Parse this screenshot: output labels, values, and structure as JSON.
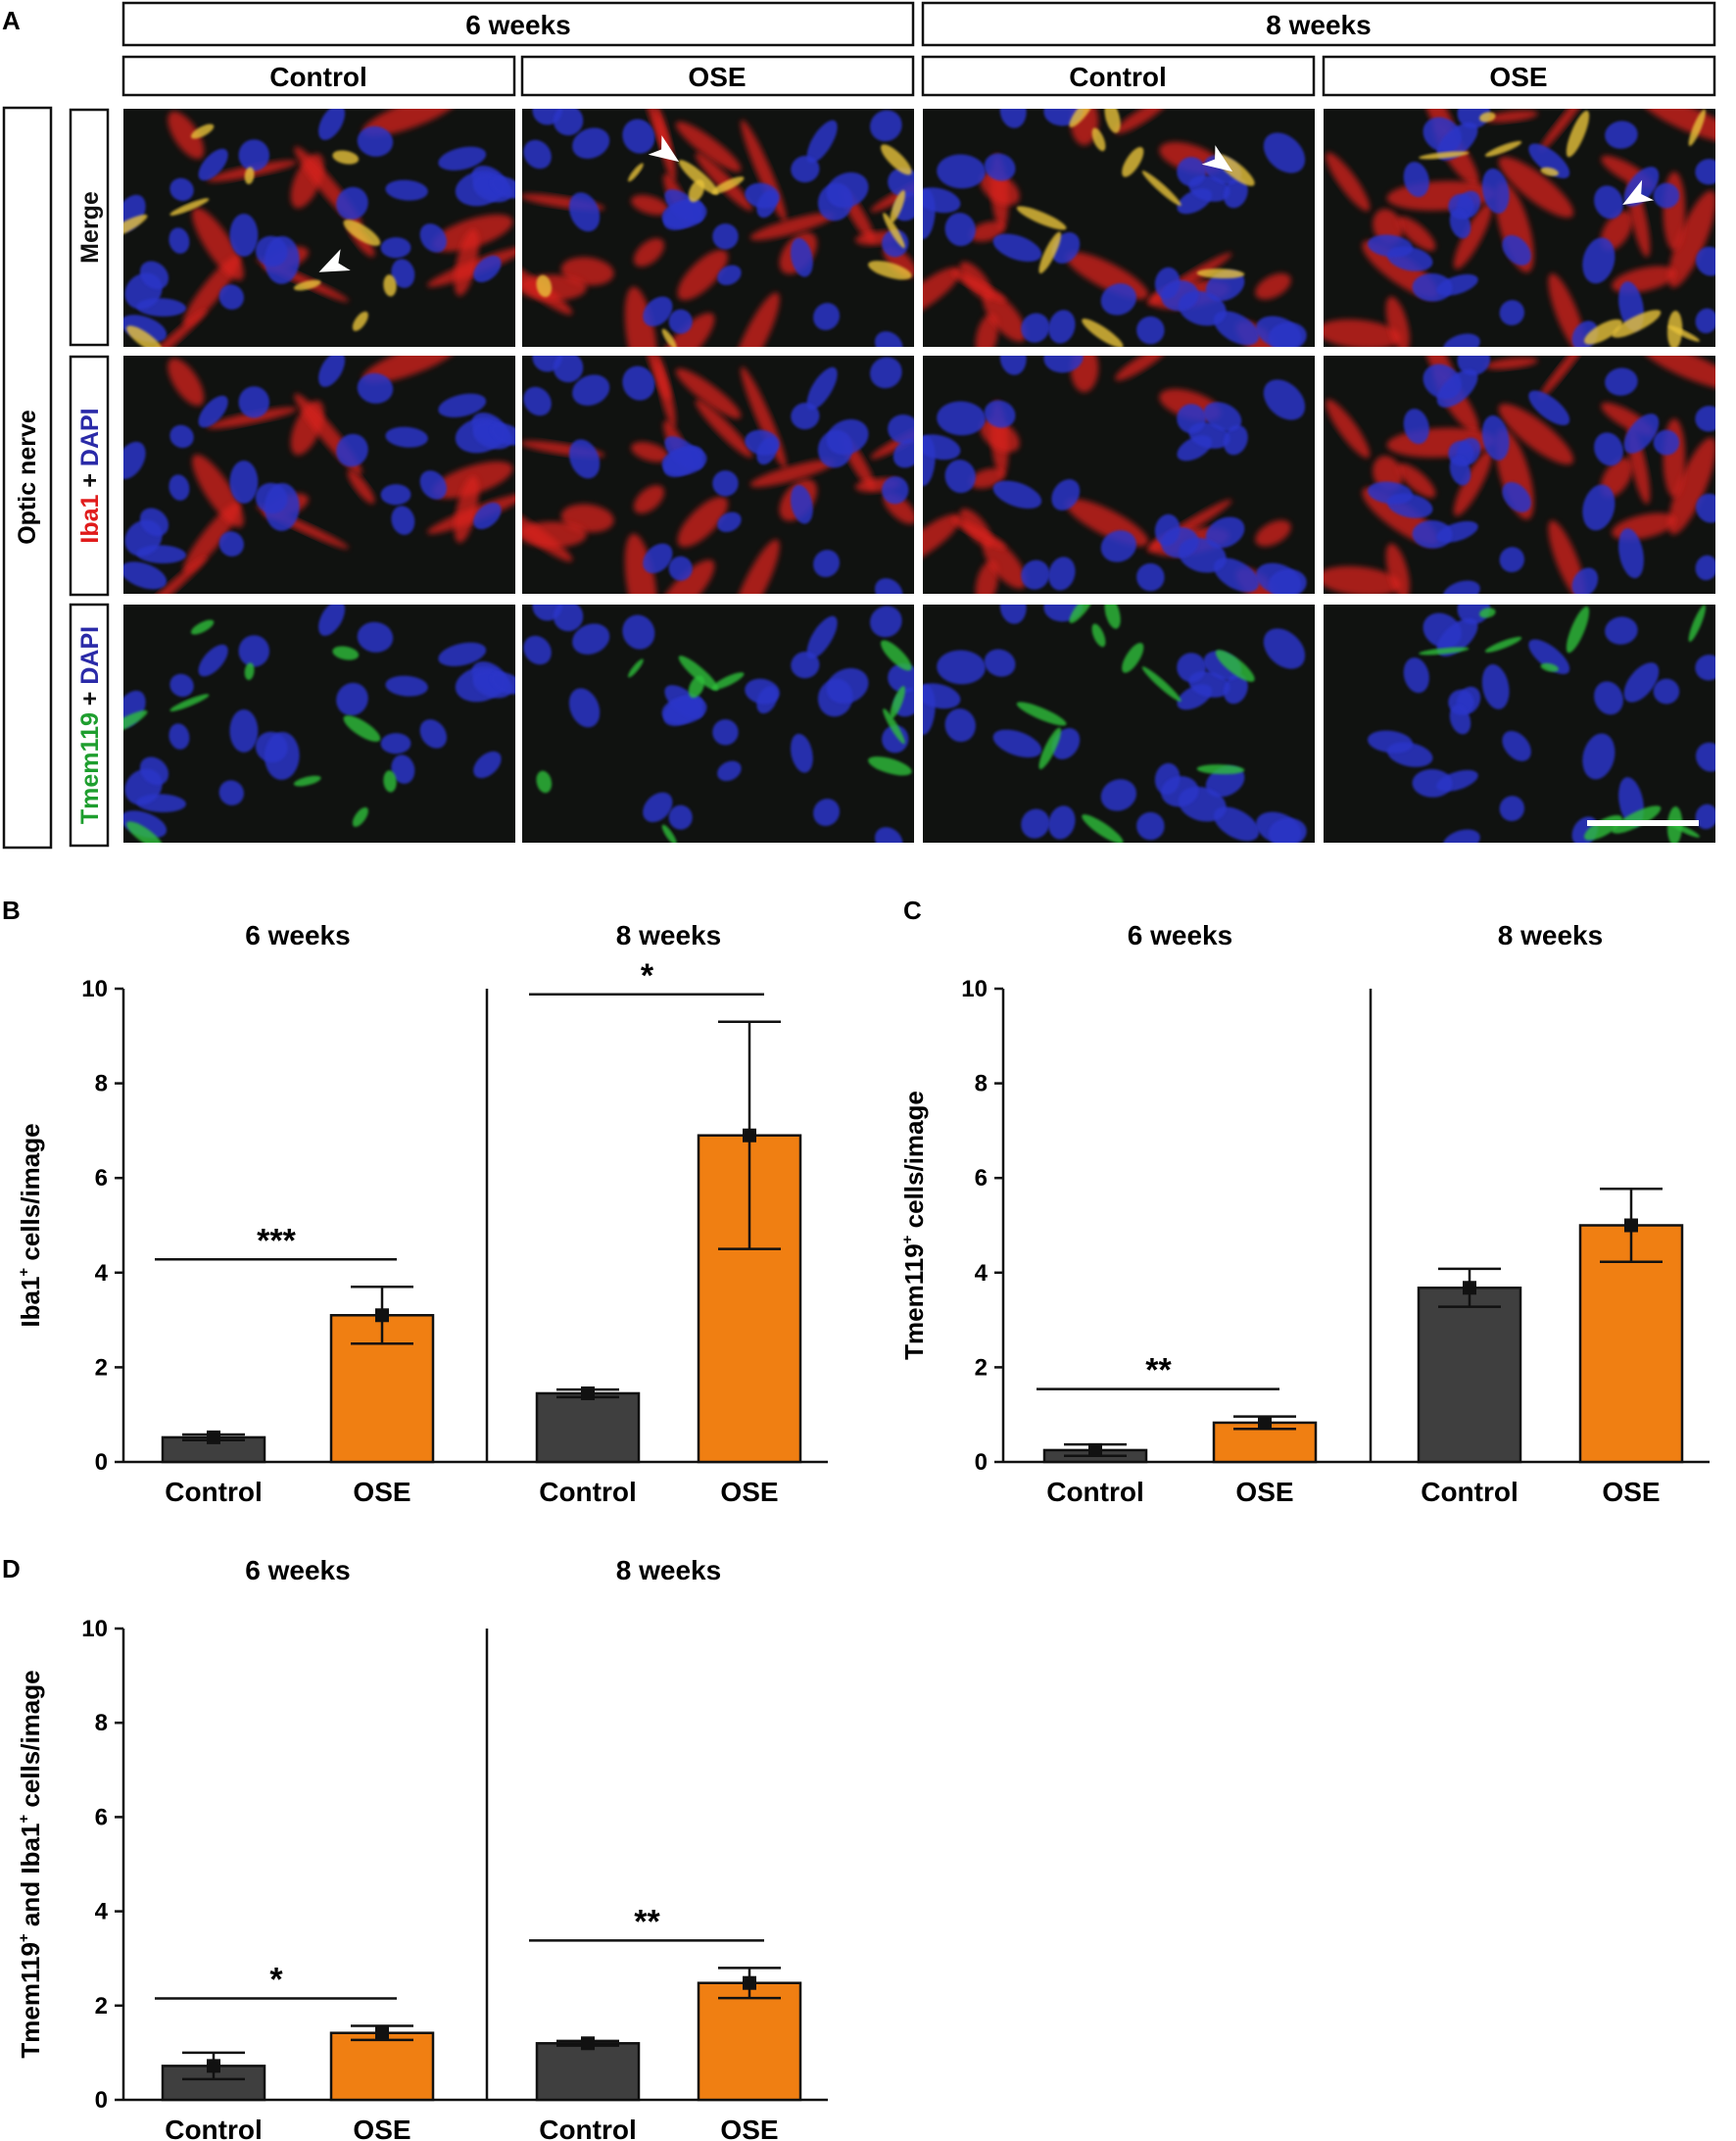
{
  "panel_labels": {
    "A": "A",
    "B": "B",
    "C": "C",
    "D": "D"
  },
  "micrographs": {
    "time_headers": [
      "6 weeks",
      "8 weeks"
    ],
    "condition_headers": [
      "Control",
      "OSE",
      "Control",
      "OSE"
    ],
    "tissue_label": "Optic nerve",
    "row_labels": [
      {
        "parts": [
          {
            "text": "Merge",
            "color": "#111111"
          }
        ]
      },
      {
        "parts": [
          {
            "text": "Iba1",
            "color": "#e01b1b"
          },
          {
            "text": " + ",
            "color": "#111111"
          },
          {
            "text": "DAPI",
            "color": "#2a2aa8"
          }
        ]
      },
      {
        "parts": [
          {
            "text": "Tmem119",
            "color": "#1e9e2e"
          },
          {
            "text": " + ",
            "color": "#111111"
          },
          {
            "text": "DAPI",
            "color": "#2a2aa8"
          }
        ]
      }
    ],
    "colors": {
      "background": "#101210",
      "nuclei": "#2b35c8",
      "iba1": "#d8231f",
      "tmem119": "#2fbf3a",
      "merge_overlap": "#e8c33a",
      "arrowhead": "#ffffff",
      "scale_bar": "#ffffff"
    }
  },
  "colors": {
    "control_bar": "#3f3f3f",
    "ose_bar": "#f07f12",
    "axis": "#111111"
  },
  "chart_data": [
    {
      "id": "B",
      "type": "bar",
      "ylabel_main": "Iba1",
      "ylabel_sup": "+",
      "ylabel_rest": " cells/image",
      "ylim": [
        0,
        10
      ],
      "yticks": [
        "0",
        "2",
        "4",
        "6",
        "8",
        "10"
      ],
      "groups": [
        "6 weeks",
        "8 weeks"
      ],
      "categories": [
        "Control",
        "OSE",
        "Control",
        "OSE"
      ],
      "values": [
        0.52,
        3.1,
        1.45,
        6.9
      ],
      "errors": [
        0.06,
        0.6,
        0.08,
        2.4
      ],
      "significance": [
        {
          "label": "***",
          "group": 0
        },
        {
          "label": "*",
          "group": 1
        }
      ]
    },
    {
      "id": "C",
      "type": "bar",
      "ylabel_main": "Tmem119",
      "ylabel_sup": "+",
      "ylabel_rest": " cells/image",
      "ylim": [
        0,
        10
      ],
      "yticks": [
        "0",
        "2",
        "4",
        "6",
        "8",
        "10"
      ],
      "groups": [
        "6 weeks",
        "8 weeks"
      ],
      "categories": [
        "Control",
        "OSE",
        "Control",
        "OSE"
      ],
      "values": [
        0.25,
        0.83,
        3.68,
        5.0
      ],
      "errors": [
        0.12,
        0.13,
        0.4,
        0.77
      ],
      "significance": [
        {
          "label": "**",
          "group": 0
        }
      ]
    },
    {
      "id": "D",
      "type": "bar",
      "ylabel_main": "Tmem119",
      "ylabel_sup": "+",
      "ylabel_rest": " and Iba1",
      "ylabel_sup2": "+",
      "ylabel_rest2": " cells/image",
      "ylim": [
        0,
        10
      ],
      "yticks": [
        "0",
        "2",
        "4",
        "6",
        "8",
        "10"
      ],
      "groups": [
        "6 weeks",
        "8 weeks"
      ],
      "categories": [
        "Control",
        "OSE",
        "Control",
        "OSE"
      ],
      "values": [
        0.72,
        1.42,
        1.2,
        2.48
      ],
      "errors": [
        0.28,
        0.15,
        0.05,
        0.32
      ],
      "significance": [
        {
          "label": "*",
          "group": 0
        },
        {
          "label": "**",
          "group": 1
        }
      ]
    }
  ]
}
